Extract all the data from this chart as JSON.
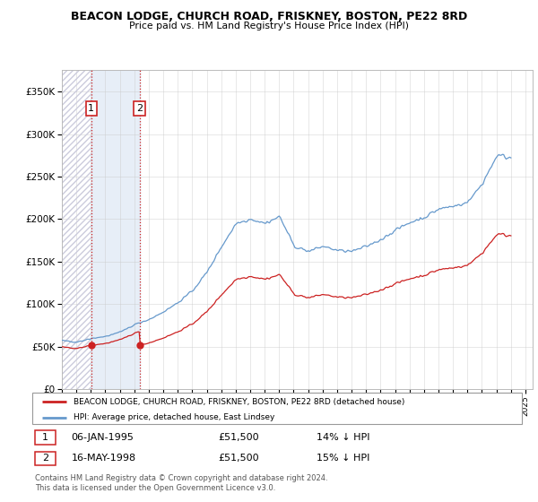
{
  "title": "BEACON LODGE, CHURCH ROAD, FRISKNEY, BOSTON, PE22 8RD",
  "subtitle": "Price paid vs. HM Land Registry's House Price Index (HPI)",
  "ylim": [
    0,
    375000
  ],
  "yticks": [
    0,
    50000,
    100000,
    150000,
    200000,
    250000,
    300000,
    350000
  ],
  "xlim_start": 1993.0,
  "xlim_end": 2025.5,
  "sale1_x": 1995.03,
  "sale1_y": 51500,
  "sale1_label": "1",
  "sale1_date": "06-JAN-1995",
  "sale1_price": "£51,500",
  "sale1_hpi": "14% ↓ HPI",
  "sale2_x": 1998.37,
  "sale2_y": 51500,
  "sale2_label": "2",
  "sale2_date": "16-MAY-1998",
  "sale2_price": "£51,500",
  "sale2_hpi": "15% ↓ HPI",
  "hpi_color": "#6699cc",
  "sale_color": "#cc2222",
  "legend_label_sale": "BEACON LODGE, CHURCH ROAD, FRISKNEY, BOSTON, PE22 8RD (detached house)",
  "legend_label_hpi": "HPI: Average price, detached house, East Lindsey",
  "footer": "Contains HM Land Registry data © Crown copyright and database right 2024.\nThis data is licensed under the Open Government Licence v3.0."
}
